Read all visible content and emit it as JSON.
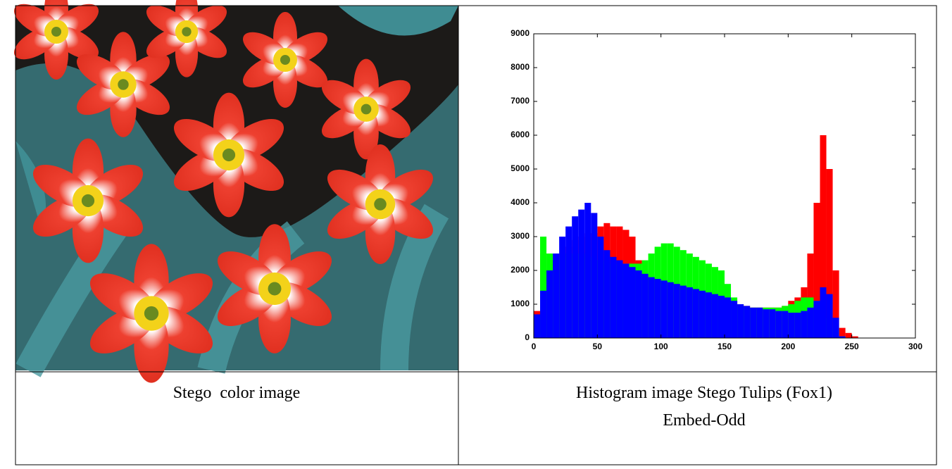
{
  "chart_data": {
    "type": "histogram",
    "bins": [
      0,
      5,
      10,
      15,
      20,
      25,
      30,
      35,
      40,
      45,
      50,
      55,
      60,
      65,
      70,
      75,
      80,
      85,
      90,
      95,
      100,
      105,
      110,
      115,
      120,
      125,
      130,
      135,
      140,
      145,
      150,
      155,
      160,
      165,
      170,
      175,
      180,
      185,
      190,
      195,
      200,
      205,
      210,
      215,
      220,
      225,
      230,
      235,
      240,
      245,
      250,
      255,
      260
    ],
    "series": [
      {
        "color": "#ff0000",
        "values": [
          800,
          2500,
          2000,
          2300,
          2500,
          2700,
          2900,
          3000,
          3100,
          3100,
          3300,
          3400,
          3300,
          3300,
          3200,
          3000,
          2300,
          2000,
          1900,
          1800,
          1700,
          1650,
          1600,
          1550,
          1500,
          1450,
          1400,
          1350,
          1300,
          1250,
          1200,
          1100,
          1000,
          950,
          900,
          900,
          900,
          900,
          900,
          950,
          1100,
          1200,
          1500,
          2500,
          4000,
          6000,
          5000,
          2000,
          300,
          150,
          50,
          0
        ]
      },
      {
        "color": "#00ff00",
        "values": [
          500,
          3000,
          2500,
          2300,
          2400,
          2500,
          2500,
          2500,
          2400,
          2300,
          2300,
          2200,
          2200,
          2200,
          2200,
          2200,
          2200,
          2300,
          2500,
          2700,
          2800,
          2800,
          2700,
          2600,
          2500,
          2400,
          2300,
          2200,
          2100,
          2000,
          1600,
          1200,
          1000,
          900,
          900,
          900,
          900,
          900,
          900,
          950,
          1000,
          1100,
          1200,
          1200,
          1100,
          900,
          600,
          300,
          50,
          0,
          0,
          0
        ]
      },
      {
        "color": "#0000ff",
        "values": [
          700,
          1400,
          2000,
          2500,
          3000,
          3300,
          3600,
          3800,
          4000,
          3700,
          3000,
          2600,
          2400,
          2300,
          2200,
          2100,
          2000,
          1900,
          1800,
          1750,
          1700,
          1650,
          1600,
          1550,
          1500,
          1450,
          1400,
          1350,
          1300,
          1250,
          1200,
          1100,
          1000,
          950,
          900,
          900,
          850,
          850,
          800,
          800,
          750,
          750,
          800,
          900,
          1100,
          1500,
          1300,
          600,
          50,
          0,
          0,
          0
        ]
      }
    ],
    "xlim": [
      0,
      300
    ],
    "ylim": [
      0,
      9000
    ],
    "xticks": [
      0,
      50,
      100,
      150,
      200,
      250,
      300
    ],
    "yticks": [
      0,
      1000,
      2000,
      3000,
      4000,
      5000,
      6000,
      7000,
      8000,
      9000
    ]
  },
  "captions": {
    "image": "Stego  color image",
    "histogram": [
      "Histogram image Stego Tulips (Fox1)",
      "Embed-Odd"
    ]
  }
}
